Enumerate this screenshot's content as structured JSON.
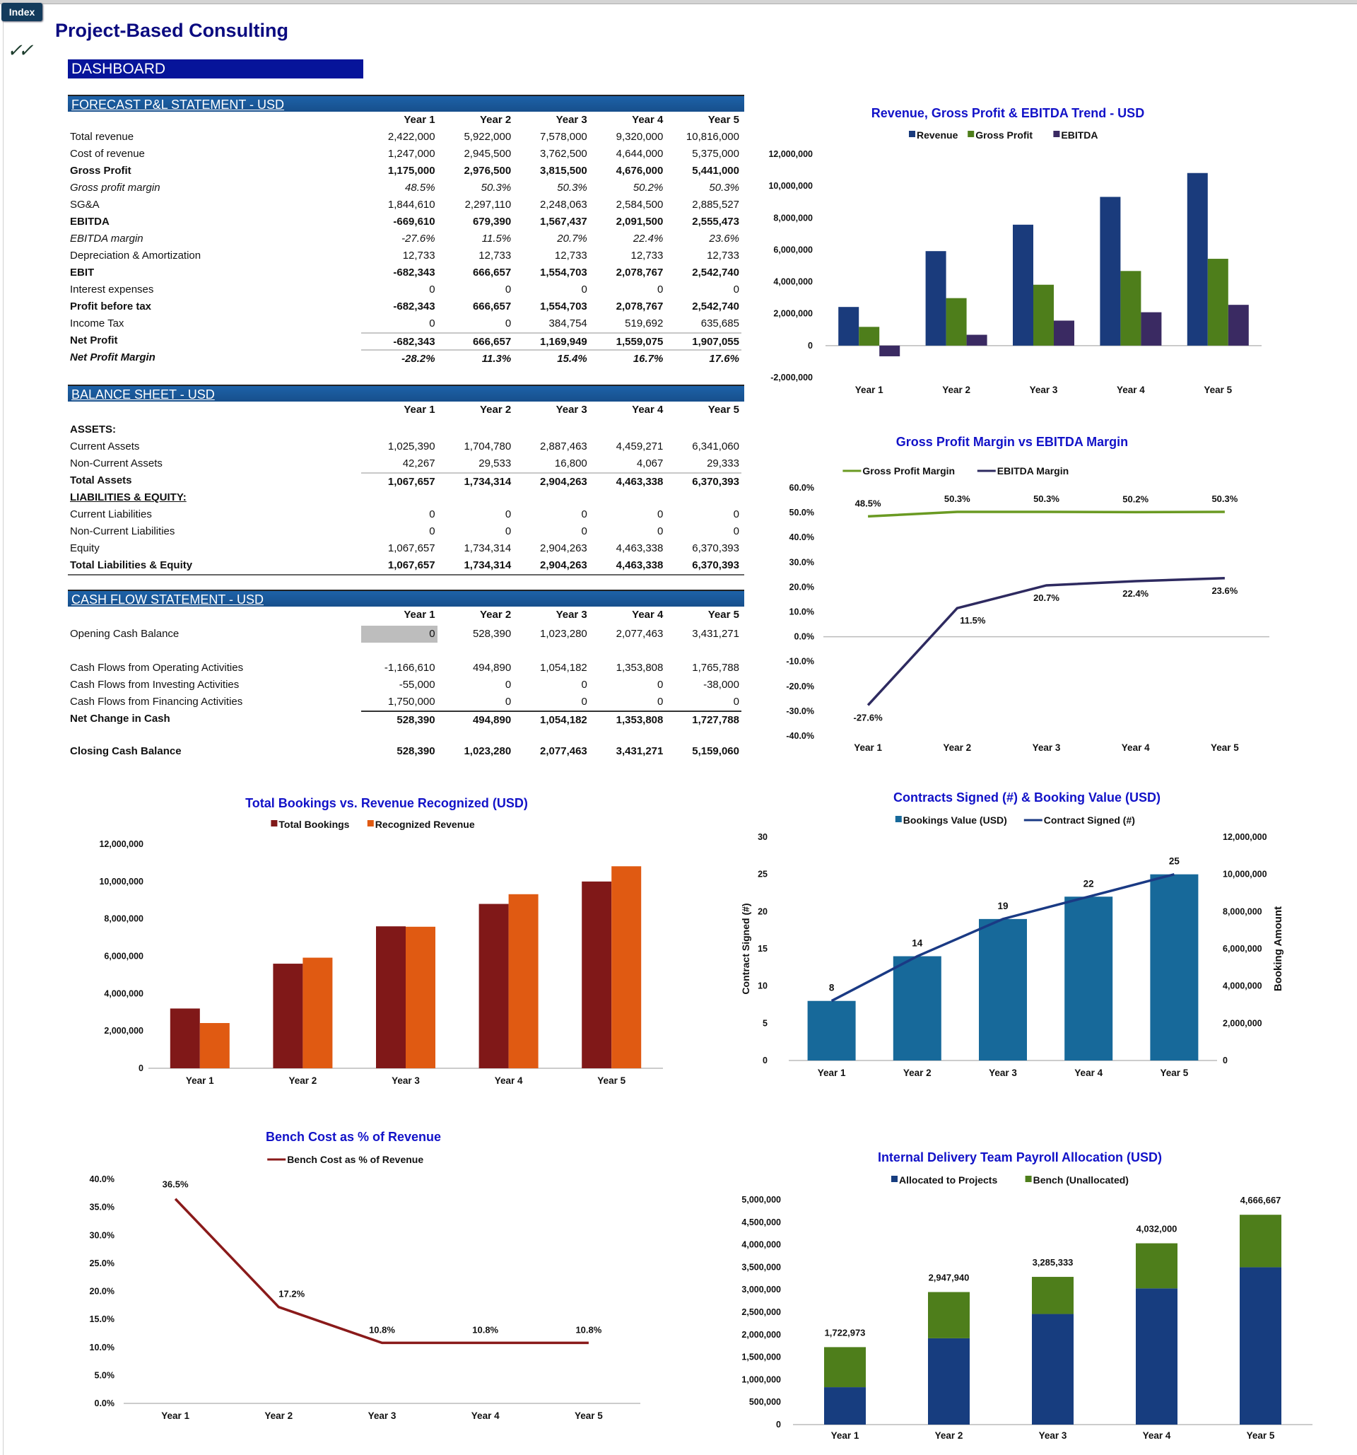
{
  "app": {
    "index_tab": "Index",
    "title": "Project-Based Consulting",
    "dashboard_label": "DASHBOARD",
    "check_icon": "double-check"
  },
  "colors": {
    "accent": "#06149a",
    "section_header": "#1b5ea2",
    "chart_title": "#1212c8"
  },
  "pnl": {
    "title": "FORECAST P&L STATEMENT - USD",
    "years": [
      "Year 1",
      "Year 2",
      "Year 3",
      "Year 4",
      "Year 5"
    ],
    "rows": [
      {
        "label": "Total revenue",
        "values": [
          "2,422,000",
          "5,922,000",
          "7,578,000",
          "9,320,000",
          "10,816,000"
        ],
        "style": "normal"
      },
      {
        "label": "Cost of revenue",
        "values": [
          "1,247,000",
          "2,945,500",
          "3,762,500",
          "4,644,000",
          "5,375,000"
        ],
        "style": "normal"
      },
      {
        "label": "Gross Profit",
        "values": [
          "1,175,000",
          "2,976,500",
          "3,815,500",
          "4,676,000",
          "5,441,000"
        ],
        "style": "bold"
      },
      {
        "label": "Gross profit margin",
        "values": [
          "48.5%",
          "50.3%",
          "50.3%",
          "50.2%",
          "50.3%"
        ],
        "style": "italic"
      },
      {
        "label": "SG&A",
        "values": [
          "1,844,610",
          "2,297,110",
          "2,248,063",
          "2,584,500",
          "2,885,527"
        ],
        "style": "normal"
      },
      {
        "label": "EBITDA",
        "values": [
          "-669,610",
          "679,390",
          "1,567,437",
          "2,091,500",
          "2,555,473"
        ],
        "style": "bold"
      },
      {
        "label": "EBITDA margin",
        "values": [
          "-27.6%",
          "11.5%",
          "20.7%",
          "22.4%",
          "23.6%"
        ],
        "style": "italic"
      },
      {
        "label": "Depreciation & Amortization",
        "values": [
          "12,733",
          "12,733",
          "12,733",
          "12,733",
          "12,733"
        ],
        "style": "normal"
      },
      {
        "label": "EBIT",
        "values": [
          "-682,343",
          "666,657",
          "1,554,703",
          "2,078,767",
          "2,542,740"
        ],
        "style": "bold"
      },
      {
        "label": "Interest expenses",
        "values": [
          "0",
          "0",
          "0",
          "0",
          "0"
        ],
        "style": "normal"
      },
      {
        "label": "Profit before tax",
        "values": [
          "-682,343",
          "666,657",
          "1,554,703",
          "2,078,767",
          "2,542,740"
        ],
        "style": "bold"
      },
      {
        "label": "Income Tax",
        "values": [
          "0",
          "0",
          "384,754",
          "519,692",
          "635,685"
        ],
        "style": "normal"
      },
      {
        "label": "Net Profit",
        "values": [
          "-682,343",
          "666,657",
          "1,169,949",
          "1,559,075",
          "1,907,055"
        ],
        "style": "bold"
      },
      {
        "label": "Net Profit Margin",
        "values": [
          "-28.2%",
          "11.3%",
          "15.4%",
          "16.7%",
          "17.6%"
        ],
        "style": "bolditalic"
      }
    ]
  },
  "balance": {
    "title": "BALANCE SHEET - USD",
    "years": [
      "Year 1",
      "Year 2",
      "Year 3",
      "Year 4",
      "Year 5"
    ],
    "rows": [
      {
        "label": "ASSETS:",
        "values": [
          "",
          "",
          "",
          "",
          ""
        ],
        "style": "bold"
      },
      {
        "label": "Current Assets",
        "values": [
          "1,025,390",
          "1,704,780",
          "2,887,463",
          "4,459,271",
          "6,341,060"
        ],
        "style": "normal"
      },
      {
        "label": "Non-Current Assets",
        "values": [
          "42,267",
          "29,533",
          "16,800",
          "4,067",
          "29,333"
        ],
        "style": "normal"
      },
      {
        "label": "Total Assets",
        "values": [
          "1,067,657",
          "1,734,314",
          "2,904,263",
          "4,463,338",
          "6,370,393"
        ],
        "style": "bold"
      },
      {
        "label": "LIABILITIES & EQUITY:",
        "values": [
          "",
          "",
          "",
          "",
          ""
        ],
        "style": "bold"
      },
      {
        "label": "Current Liabilities",
        "values": [
          "0",
          "0",
          "0",
          "0",
          "0"
        ],
        "style": "normal"
      },
      {
        "label": "Non-Current Liabilities",
        "values": [
          "0",
          "0",
          "0",
          "0",
          "0"
        ],
        "style": "normal"
      },
      {
        "label": "Equity",
        "values": [
          "1,067,657",
          "1,734,314",
          "2,904,263",
          "4,463,338",
          "6,370,393"
        ],
        "style": "normal"
      },
      {
        "label": "Total Liabilities & Equity",
        "values": [
          "1,067,657",
          "1,734,314",
          "2,904,263",
          "4,463,338",
          "6,370,393"
        ],
        "style": "bold"
      }
    ]
  },
  "cashflow": {
    "title": "CASH FLOW STATEMENT - USD",
    "years": [
      "Year 1",
      "Year 2",
      "Year 3",
      "Year 4",
      "Year 5"
    ],
    "rows": [
      {
        "label": "Opening Cash Balance",
        "values": [
          "0",
          "528,390",
          "1,023,280",
          "2,077,463",
          "3,431,271"
        ],
        "style": "normal"
      },
      {
        "label": "Cash Flows from Operating Activities",
        "values": [
          "-1,166,610",
          "494,890",
          "1,054,182",
          "1,353,808",
          "1,765,788"
        ],
        "style": "normal"
      },
      {
        "label": "Cash Flows from Investing Activities",
        "values": [
          "-55,000",
          "0",
          "0",
          "0",
          "-38,000"
        ],
        "style": "normal"
      },
      {
        "label": "Cash Flows from Financing Activities",
        "values": [
          "1,750,000",
          "0",
          "0",
          "0",
          "0"
        ],
        "style": "normal"
      },
      {
        "label": "Net Change in Cash",
        "values": [
          "528,390",
          "494,890",
          "1,054,182",
          "1,353,808",
          "1,727,788"
        ],
        "style": "bold"
      },
      {
        "label": "Closing Cash Balance",
        "values": [
          "528,390",
          "1,023,280",
          "2,077,463",
          "3,431,271",
          "5,159,060"
        ],
        "style": "bold"
      }
    ]
  },
  "chart_data": [
    {
      "id": "rev_trend",
      "type": "bar",
      "title": "Revenue, Gross Profit & EBITDA Trend - USD",
      "categories": [
        "Year 1",
        "Year 2",
        "Year 3",
        "Year 4",
        "Year 5"
      ],
      "series": [
        {
          "name": "Revenue",
          "values": [
            2422000,
            5922000,
            7578000,
            9320000,
            10816000
          ],
          "color": "#1a3b7c"
        },
        {
          "name": "Gross Profit",
          "values": [
            1175000,
            2976500,
            3815500,
            4676000,
            5441000
          ],
          "color": "#4e7e1b"
        },
        {
          "name": "EBITDA",
          "values": [
            -669610,
            679390,
            1567437,
            2091500,
            2555473
          ],
          "color": "#3a2a62"
        }
      ],
      "ylim": [
        -2000000,
        12000000
      ],
      "yticks": [
        -2000000,
        0,
        2000000,
        4000000,
        6000000,
        8000000,
        10000000,
        12000000
      ],
      "legend": "top",
      "grid": false
    },
    {
      "id": "margins",
      "type": "line",
      "title": "Gross Profit Margin vs EBITDA Margin",
      "categories": [
        "Year 1",
        "Year 2",
        "Year 3",
        "Year 4",
        "Year 5"
      ],
      "series": [
        {
          "name": "Gross Profit Margin",
          "values": [
            48.5,
            50.3,
            50.3,
            50.2,
            50.3
          ],
          "color": "#6a9a22"
        },
        {
          "name": "EBITDA Margin",
          "values": [
            -27.6,
            11.5,
            20.7,
            22.4,
            23.6
          ],
          "color": "#2e2a60"
        }
      ],
      "ylim": [
        -40,
        60
      ],
      "yticks": [
        -40,
        -30,
        -20,
        -10,
        0,
        10,
        20,
        30,
        40,
        50,
        60
      ],
      "unit": "%",
      "legend": "top",
      "grid": false
    },
    {
      "id": "bookings_revenue",
      "type": "bar",
      "title": "Total Bookings vs. Revenue Recognized (USD)",
      "categories": [
        "Year 1",
        "Year 2",
        "Year 3",
        "Year 4",
        "Year 5"
      ],
      "series": [
        {
          "name": "Total Bookings",
          "values": [
            3200000,
            5600000,
            7600000,
            8800000,
            10000000
          ],
          "color": "#801818"
        },
        {
          "name": "Recognized Revenue",
          "values": [
            2422000,
            5922000,
            7578000,
            9320000,
            10816000
          ],
          "color": "#e05a12"
        }
      ],
      "ylim": [
        0,
        12000000
      ],
      "yticks": [
        0,
        2000000,
        4000000,
        6000000,
        8000000,
        10000000,
        12000000
      ],
      "legend": "top",
      "grid": false
    },
    {
      "id": "contracts",
      "type": "bar",
      "title": "Contracts Signed (#) & Booking Value (USD)",
      "categories": [
        "Year 1",
        "Year 2",
        "Year 3",
        "Year 4",
        "Year 5"
      ],
      "series": [
        {
          "name": "Bookings Value (USD)",
          "values": [
            3200000,
            5600000,
            7600000,
            8800000,
            10000000
          ],
          "color": "#17699a",
          "axis": "right"
        },
        {
          "name": "Contract Signed (#)",
          "values": [
            8,
            14,
            19,
            22,
            25
          ],
          "color": "#1a3a84",
          "axis": "left",
          "type": "line"
        }
      ],
      "ylim": [
        0,
        30
      ],
      "yticks": [
        0,
        5,
        10,
        15,
        20,
        25,
        30
      ],
      "y2lim": [
        0,
        12000000
      ],
      "y2ticks": [
        0,
        2000000,
        4000000,
        6000000,
        8000000,
        10000000,
        12000000
      ],
      "ylabel": "Contract Signed (#)",
      "y2label": "Booking Amount",
      "legend": "top",
      "grid": false
    },
    {
      "id": "bench",
      "type": "line",
      "title": "Bench Cost as % of Revenue",
      "categories": [
        "Year 1",
        "Year 2",
        "Year 3",
        "Year 4",
        "Year 5"
      ],
      "series": [
        {
          "name": "Bench Cost as % of Revenue",
          "values": [
            36.5,
            17.2,
            10.8,
            10.8,
            10.8
          ],
          "color": "#8a1a1a"
        }
      ],
      "ylim": [
        0,
        40
      ],
      "yticks": [
        0,
        5,
        10,
        15,
        20,
        25,
        30,
        35,
        40
      ],
      "unit": "%",
      "legend": "top",
      "grid": false
    },
    {
      "id": "payroll",
      "type": "bar",
      "stacked": true,
      "title": "Internal Delivery Team Payroll Allocation (USD)",
      "categories": [
        "Year 1",
        "Year 2",
        "Year 3",
        "Year 4",
        "Year 5"
      ],
      "series": [
        {
          "name": "Allocated to Projects",
          "values": [
            832000,
            1920000,
            2460000,
            3030000,
            3500000
          ],
          "color": "#173d7f"
        },
        {
          "name": "Bench (Unallocated)",
          "values": [
            890973,
            1027940,
            825333,
            1002000,
            1166667
          ],
          "color": "#4e7e1b"
        }
      ],
      "totals": [
        "1,722,973",
        "2,947,940",
        "3,285,333",
        "4,032,000",
        "4,666,667"
      ],
      "ylim": [
        0,
        5000000
      ],
      "yticks": [
        0,
        500000,
        1000000,
        1500000,
        2000000,
        2500000,
        3000000,
        3500000,
        4000000,
        4500000,
        5000000
      ],
      "legend": "top",
      "grid": false
    }
  ]
}
